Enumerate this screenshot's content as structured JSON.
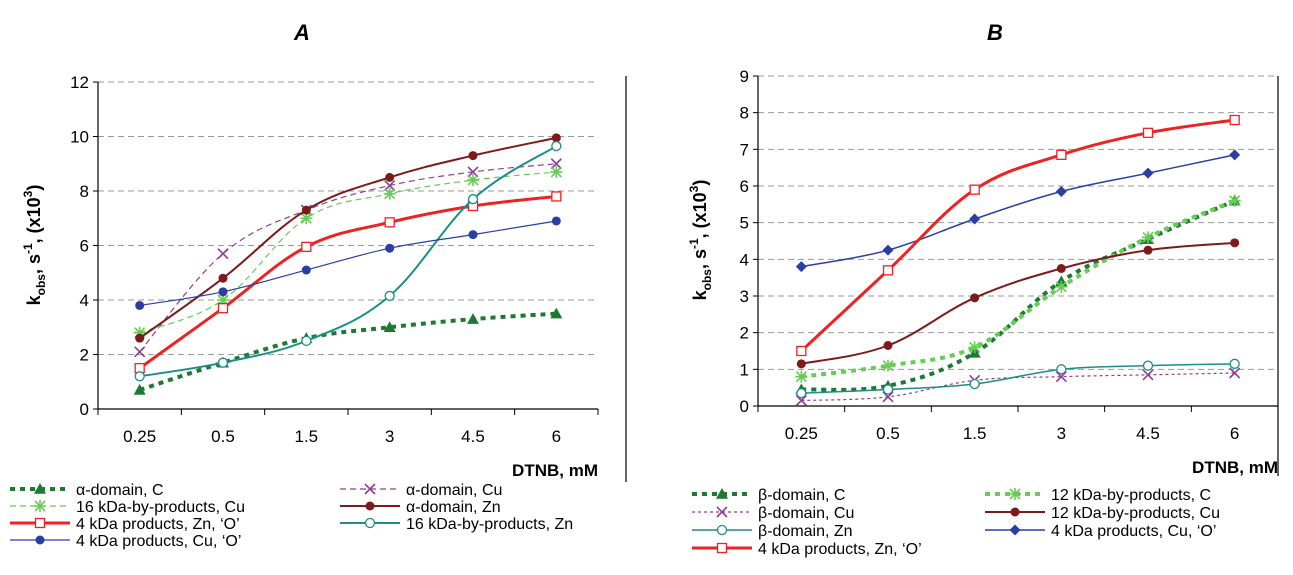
{
  "chart_data": [
    {
      "type": "line",
      "title": "A",
      "xlabel": "DTNB, mM",
      "ylabel": {
        "main": "k",
        "sub": "obs",
        "mid": ", s",
        "sup1": "-1",
        "tail": ", (x10",
        "sup2": "3",
        "end": ")"
      },
      "categories": [
        "0.25",
        "0.5",
        "1.5",
        "3",
        "4.5",
        "6"
      ],
      "ylim": [
        0,
        12
      ],
      "yticks": [
        "0",
        "2",
        "4",
        "6",
        "8",
        "10",
        "12"
      ],
      "ytick_values": [
        0,
        2,
        4,
        6,
        8,
        10,
        12
      ],
      "grid": true,
      "legend_position": "bottom",
      "series": [
        {
          "name": "α-domain, C",
          "values": [
            0.7,
            1.7,
            2.6,
            3.0,
            3.3,
            3.5
          ],
          "color": "#1e7a32",
          "width": 4,
          "dash": "5,5",
          "marker": "triangle"
        },
        {
          "name": "α-domain, Cu",
          "values": [
            2.1,
            5.7,
            7.3,
            8.2,
            8.7,
            9.0
          ],
          "color": "#8e3f94",
          "width": 1.2,
          "dash": "6,4",
          "marker": "x"
        },
        {
          "name": "16 kDa-by-products, Cu",
          "values": [
            2.8,
            4.0,
            7.0,
            7.9,
            8.4,
            8.7
          ],
          "color": "#66cc55",
          "width": 1.2,
          "dash": "6,4",
          "marker": "star"
        },
        {
          "name": "α-domain, Zn",
          "values": [
            2.6,
            4.8,
            7.3,
            8.5,
            9.3,
            9.95
          ],
          "color": "#7d1a1a",
          "width": 2,
          "dash": "",
          "marker": "dot"
        },
        {
          "name": "4 kDa products, Zn, ‘O’",
          "values": [
            1.5,
            3.7,
            5.95,
            6.85,
            7.45,
            7.8
          ],
          "color": "#ee2222",
          "width": 3,
          "dash": "",
          "marker": "square"
        },
        {
          "name": "16 kDa-by-products, Zn",
          "values": [
            1.2,
            1.7,
            2.5,
            4.15,
            7.7,
            9.65
          ],
          "color": "#1b8f87",
          "width": 2,
          "dash": "",
          "marker": "circle"
        },
        {
          "name": "4 kDa products, Cu, ‘O’",
          "values": [
            3.8,
            4.3,
            5.1,
            5.9,
            6.4,
            6.9
          ],
          "color": "#2a3ea6",
          "width": 1.2,
          "dash": "",
          "marker": "dot"
        }
      ]
    },
    {
      "type": "line",
      "title": "B",
      "xlabel": "DTNB, mM",
      "ylabel": {
        "main": "k",
        "sub": "obs",
        "mid": ", s",
        "sup1": "-1",
        "tail": ", (x10",
        "sup2": "3",
        "end": ")"
      },
      "categories": [
        "0.25",
        "0.5",
        "1.5",
        "3",
        "4.5",
        "6"
      ],
      "ylim": [
        0,
        9
      ],
      "yticks": [
        "0",
        "1",
        "2",
        "3",
        "4",
        "5",
        "6",
        "7",
        "8",
        "9"
      ],
      "ytick_values": [
        0,
        1,
        2,
        3,
        4,
        5,
        6,
        7,
        8,
        9
      ],
      "grid": true,
      "legend_position": "bottom",
      "series": [
        {
          "name": "β-domain, C",
          "values": [
            0.45,
            0.55,
            1.45,
            3.4,
            4.55,
            5.6
          ],
          "color": "#1e7a32",
          "width": 4,
          "dash": "5,5",
          "marker": "triangle"
        },
        {
          "name": "12 kDa-by-products, C",
          "values": [
            0.8,
            1.1,
            1.6,
            3.25,
            4.6,
            5.6
          ],
          "color": "#66cc55",
          "width": 4,
          "dash": "5,5",
          "marker": "star"
        },
        {
          "name": "β-domain, Cu",
          "values": [
            0.15,
            0.25,
            0.7,
            0.8,
            0.85,
            0.9
          ],
          "color": "#8e3f94",
          "width": 1.2,
          "dash": "3,3",
          "marker": "x"
        },
        {
          "name": "12 kDa-by-products, Cu",
          "values": [
            1.15,
            1.65,
            2.95,
            3.75,
            4.25,
            4.45
          ],
          "color": "#7d1a1a",
          "width": 2,
          "dash": "",
          "marker": "dot"
        },
        {
          "name": "β-domain, Zn",
          "values": [
            0.35,
            0.45,
            0.6,
            1.0,
            1.1,
            1.15
          ],
          "color": "#1b8f87",
          "width": 1.5,
          "dash": "",
          "marker": "circle"
        },
        {
          "name": "4 kDa products, Cu, ‘O’",
          "values": [
            3.8,
            4.25,
            5.1,
            5.85,
            6.35,
            6.85
          ],
          "color": "#2a3ea6",
          "width": 1.5,
          "dash": "",
          "marker": "diamond"
        },
        {
          "name": "4 kDa products, Zn, ‘O’",
          "values": [
            1.5,
            3.7,
            5.9,
            6.85,
            7.45,
            7.8
          ],
          "color": "#ee2222",
          "width": 3,
          "dash": "",
          "marker": "square"
        }
      ]
    }
  ]
}
